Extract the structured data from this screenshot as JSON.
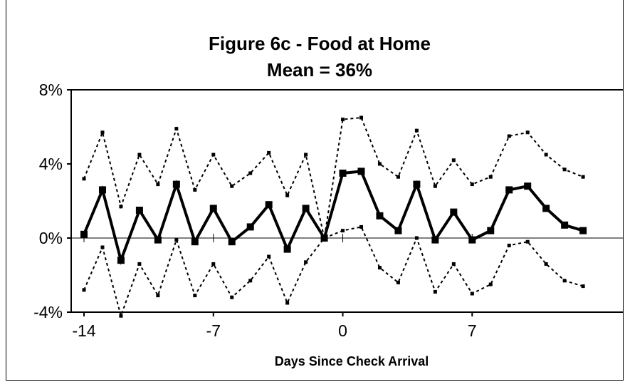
{
  "chart_data": {
    "type": "line",
    "title": "Figure 6c - Food at Home",
    "subtitle": "Mean = 36%",
    "xlabel": "Days Since Check Arrival",
    "ylabel": "",
    "xlim": [
      -14,
      16
    ],
    "ylim": [
      -4,
      8
    ],
    "x_ticks": [
      -14,
      -7,
      0,
      7
    ],
    "x_tick_labels": [
      "-14",
      "-7",
      "0",
      "7"
    ],
    "y_ticks": [
      -4,
      0,
      4,
      8
    ],
    "y_tick_labels": [
      "-4%",
      "0%",
      "4%",
      "8%"
    ],
    "grid": false,
    "legend": "none",
    "x": [
      -14,
      -13,
      -12,
      -11,
      -10,
      -9,
      -8,
      -7,
      -6,
      -5,
      -4,
      -3,
      -2,
      -1,
      0,
      1,
      2,
      3,
      4,
      5,
      6,
      7,
      8,
      9,
      10,
      11,
      12,
      13,
      14,
      15,
      16
    ],
    "series": [
      {
        "style": "solid-marker",
        "color": "#000000",
        "values": [
          0.2,
          2.6,
          -1.2,
          1.5,
          -0.1,
          2.9,
          -0.2,
          1.6,
          -0.2,
          0.6,
          1.8,
          -0.6,
          1.6,
          0.0,
          3.5,
          3.6,
          1.2,
          0.4,
          2.9,
          -0.1,
          1.4,
          -0.1,
          0.4,
          2.6,
          2.8,
          1.6,
          0.7,
          0.4,
          null,
          null,
          null
        ]
      },
      {
        "style": "dotted",
        "color": "#000000",
        "values": [
          3.2,
          5.7,
          1.7,
          4.5,
          2.9,
          5.9,
          2.6,
          4.5,
          2.8,
          3.5,
          4.6,
          2.3,
          4.5,
          0.0,
          6.4,
          6.5,
          4.0,
          3.3,
          5.8,
          2.8,
          4.2,
          2.9,
          3.3,
          5.5,
          5.7,
          4.5,
          3.7,
          3.3,
          null,
          null,
          null
        ]
      },
      {
        "style": "dotted",
        "color": "#000000",
        "values": [
          -2.8,
          -0.5,
          -4.2,
          -1.4,
          -3.1,
          -0.1,
          -3.1,
          -1.4,
          -3.2,
          -2.3,
          -1.0,
          -3.5,
          -1.3,
          0.0,
          0.4,
          0.6,
          -1.6,
          -2.4,
          0.0,
          -2.9,
          -1.4,
          -3.0,
          -2.5,
          -0.4,
          -0.2,
          -1.4,
          -2.3,
          -2.6,
          null,
          null,
          null
        ]
      }
    ]
  }
}
